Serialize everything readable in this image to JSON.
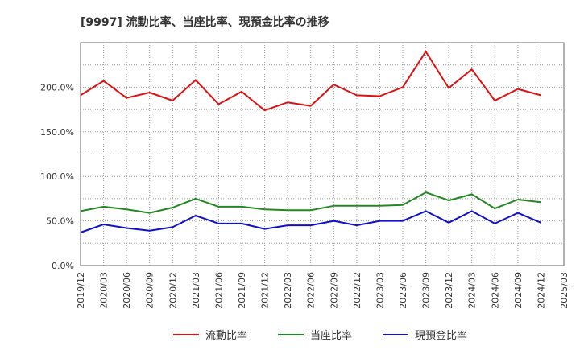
{
  "chart_data": {
    "type": "line",
    "title": "[9997]  流動比率、当座比率、現預金比率の推移",
    "xlabel": "",
    "ylabel": "",
    "ylim": [
      0,
      250
    ],
    "yticks": [
      0,
      50,
      100,
      150,
      200
    ],
    "ytick_labels": [
      "0.0%",
      "50.0%",
      "100.0%",
      "150.0%",
      "200.0%"
    ],
    "categories": [
      "2019/12",
      "2020/03",
      "2020/06",
      "2020/09",
      "2020/12",
      "2021/03",
      "2021/06",
      "2021/09",
      "2021/12",
      "2022/03",
      "2022/06",
      "2022/09",
      "2022/12",
      "2023/03",
      "2023/06",
      "2023/09",
      "2023/12",
      "2024/03",
      "2024/06",
      "2024/09",
      "2024/12",
      "2025/03"
    ],
    "grid": true,
    "legend_position": "bottom",
    "series": [
      {
        "name": "流動比率",
        "color": "#dd1111",
        "values": [
          191,
          207,
          188,
          194,
          185,
          208,
          181,
          195,
          174,
          183,
          179,
          203,
          191,
          190,
          200,
          240,
          199,
          220,
          185,
          198,
          191,
          null
        ]
      },
      {
        "name": "当座比率",
        "color": "#228822",
        "values": [
          61,
          66,
          63,
          59,
          65,
          75,
          66,
          66,
          63,
          62,
          62,
          67,
          67,
          67,
          68,
          82,
          73,
          80,
          64,
          74,
          71,
          null
        ]
      },
      {
        "name": "現預金比率",
        "color": "#1111cc",
        "values": [
          37,
          46,
          42,
          39,
          43,
          56,
          47,
          47,
          41,
          45,
          45,
          50,
          45,
          50,
          50,
          61,
          48,
          61,
          47,
          59,
          48,
          null
        ]
      }
    ]
  }
}
